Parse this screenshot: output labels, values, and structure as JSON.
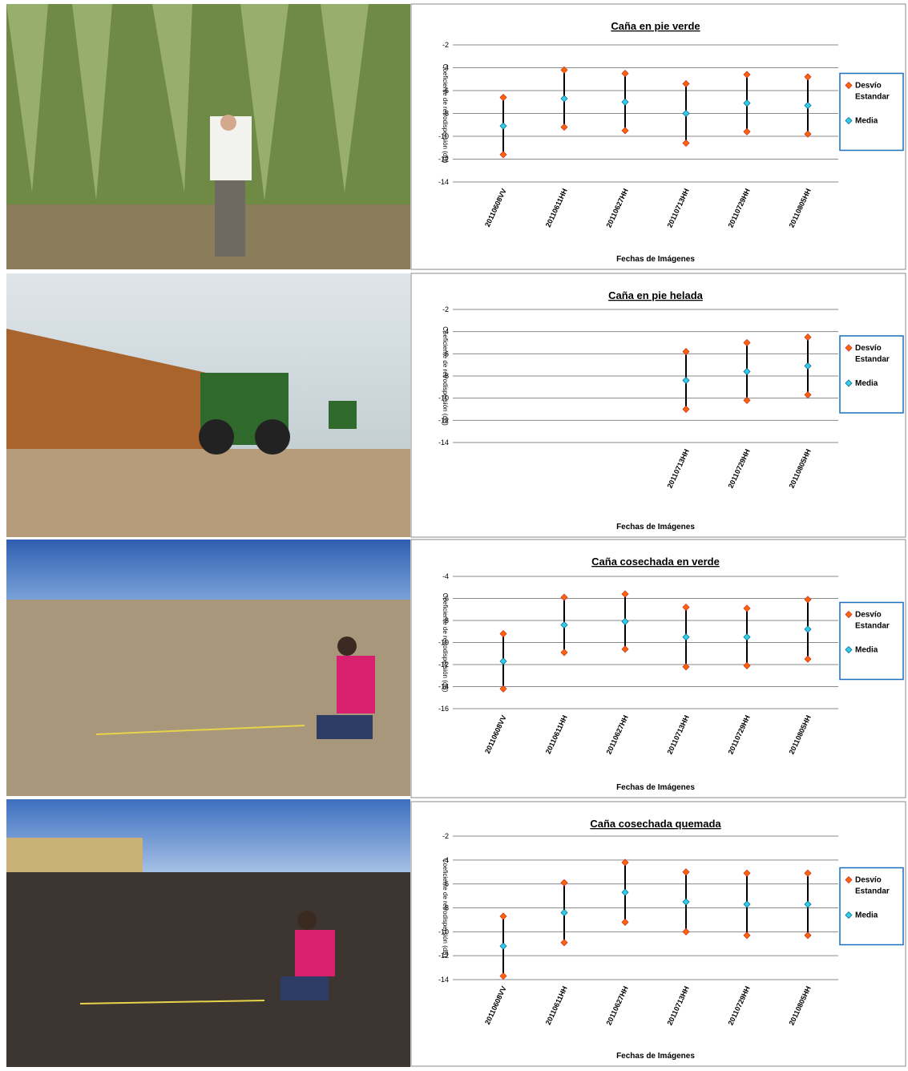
{
  "chart_data": [
    {
      "type": "errorbar",
      "title": "Caña  en pie verde",
      "y_label": "Coeficiente de retrodispersión (dB)",
      "x_label": "Fechas de Imágenes",
      "categories": [
        "20110608VV",
        "20110611HH",
        "20110627HH",
        "20110713HH",
        "20110729HH",
        "20110805HH"
      ],
      "series": [
        {
          "name": "Desvío Estandar",
          "color": "#ff6600",
          "values": [
            2.5,
            2.5,
            2.5,
            2.6,
            2.5,
            2.5
          ]
        },
        {
          "name": "Media",
          "color": "#33ccee",
          "values": [
            -9.1,
            -6.7,
            -7.0,
            -8.0,
            -7.1,
            -7.3
          ]
        }
      ],
      "ylim": [
        -14,
        -2
      ],
      "yticks": [
        -2,
        -4,
        -6,
        -8,
        -10,
        -12,
        -14
      ],
      "grid": true
    },
    {
      "type": "errorbar",
      "title": "Caña  en pie helada",
      "y_label": "Coeficiente de retrodispersión (dB)",
      "x_label": "Fechas de Imágenes",
      "categories": [
        null,
        null,
        null,
        "20110713HH",
        "20110729HH",
        "20110805HH"
      ],
      "series": [
        {
          "name": "Desvío Estandar",
          "color": "#ff6600",
          "values": [
            null,
            null,
            null,
            2.6,
            2.6,
            2.6
          ]
        },
        {
          "name": "Media",
          "color": "#33ccee",
          "values": [
            null,
            null,
            null,
            -8.4,
            -7.6,
            -7.1
          ]
        }
      ],
      "ylim": [
        -14,
        -2
      ],
      "yticks": [
        -2,
        -4,
        -6,
        -8,
        -10,
        -12,
        -14
      ],
      "grid": true
    },
    {
      "type": "errorbar",
      "title": "Caña cosechada en verde",
      "y_label": "Coeficiente de retrodispersión (dB)",
      "x_label": "Fechas de Imágenes",
      "categories": [
        "20110608VV",
        "20110611HH",
        "20110627HH",
        "20110713HH",
        "20110729HH",
        "20110805HH"
      ],
      "series": [
        {
          "name": "Desvío Estandar",
          "color": "#ff6600",
          "values": [
            2.5,
            2.5,
            2.5,
            2.7,
            2.6,
            2.7
          ]
        },
        {
          "name": "Media",
          "color": "#33ccee",
          "values": [
            -11.7,
            -8.4,
            -8.1,
            -9.5,
            -9.5,
            -8.8
          ]
        }
      ],
      "ylim": [
        -16,
        -4
      ],
      "yticks": [
        -4,
        -6,
        -8,
        -10,
        -12,
        -14,
        -16
      ],
      "grid": true
    },
    {
      "type": "errorbar",
      "title": "Caña  cosechada quemada",
      "y_label": "Coeficiente de retrodispersión (dB)",
      "x_label": "Fechas de Imágenes",
      "categories": [
        "20110608VV",
        "20110611HH",
        "20110627HH",
        "20110713HH",
        "20110729HH",
        "20110805HH"
      ],
      "series": [
        {
          "name": "Desvío Estandar",
          "color": "#ff6600",
          "values": [
            2.5,
            2.5,
            2.5,
            2.5,
            2.6,
            2.6
          ]
        },
        {
          "name": "Media",
          "color": "#33ccee",
          "values": [
            -11.2,
            -8.4,
            -6.7,
            -7.5,
            -7.7,
            -7.7
          ]
        }
      ],
      "ylim": [
        -14,
        -2
      ],
      "yticks": [
        -2,
        -4,
        -6,
        -8,
        -10,
        -12,
        -14
      ],
      "grid": true
    }
  ]
}
